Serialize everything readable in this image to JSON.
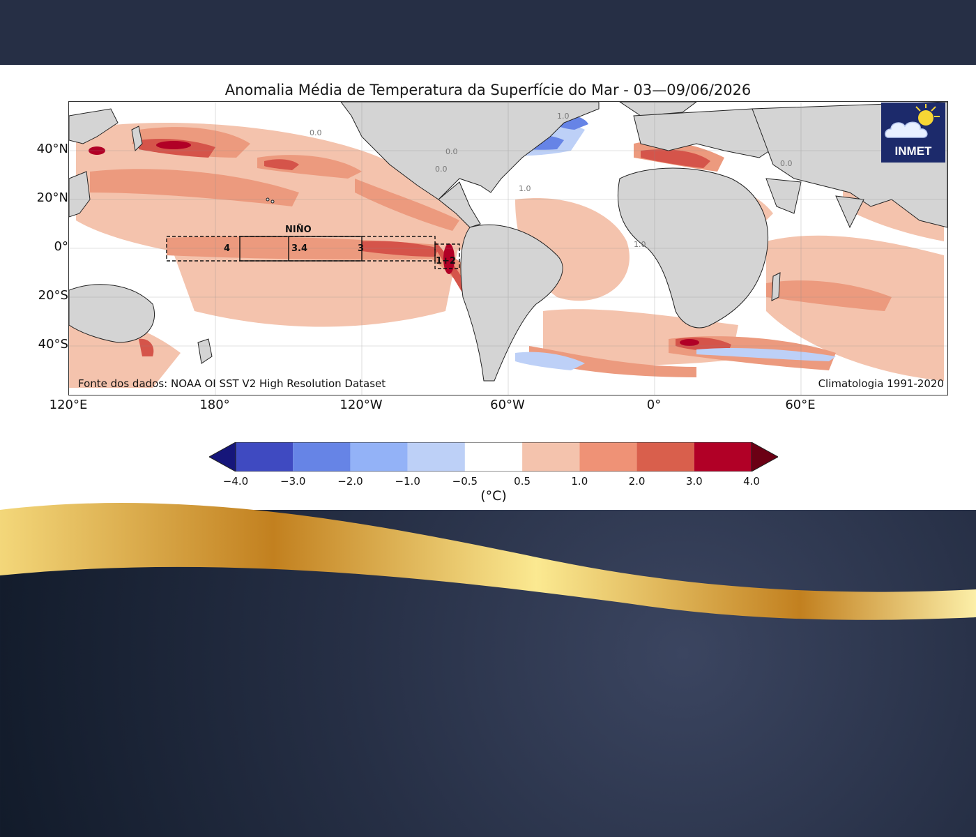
{
  "map": {
    "title": "Anomalia Média de Temperatura da Superfície do Mar - 03—09/06/2026",
    "source_note": "Fonte dos dados: NOAA OI SST V2 High Resolution Dataset",
    "climatology_note": "Climatologia 1991-2020",
    "logo_text": "INMET",
    "lat_labels": [
      "40°N",
      "20°N",
      "0°",
      "20°S",
      "40°S"
    ],
    "lon_labels": [
      "120°E",
      "180°",
      "120°W",
      "60°W",
      "0°",
      "60°E"
    ],
    "nino_header": "NIÑO",
    "nino_regions": [
      "4",
      "3.4",
      "3",
      "1+2"
    ],
    "contour_labels": [
      "0.0",
      "1.0"
    ]
  },
  "colorbar": {
    "ticks": [
      "−4.0",
      "−3.0",
      "−2.0",
      "−1.0",
      "−0.5",
      "0.5",
      "1.0",
      "2.0",
      "3.0",
      "4.0"
    ],
    "unit": "(°C)",
    "colors": [
      "#16167a",
      "#3f4ac1",
      "#6684e6",
      "#93b2f7",
      "#bdd0f7",
      "#ffffff",
      "#f4c3ad",
      "#ef9276",
      "#d95f4c",
      "#b10026",
      "#6b0014"
    ]
  },
  "colors": {
    "land": "#d4d4d4",
    "anomaly_weak": "#f4c3ad",
    "anomaly_moderate": "#ec9a7e",
    "anomaly_strong": "#d5544a",
    "anomaly_extreme": "#b10026",
    "cool_weak": "#bdd0f7",
    "cool_moderate": "#6684e6",
    "background_dark": "#262f45",
    "gold": "#c9882a"
  }
}
